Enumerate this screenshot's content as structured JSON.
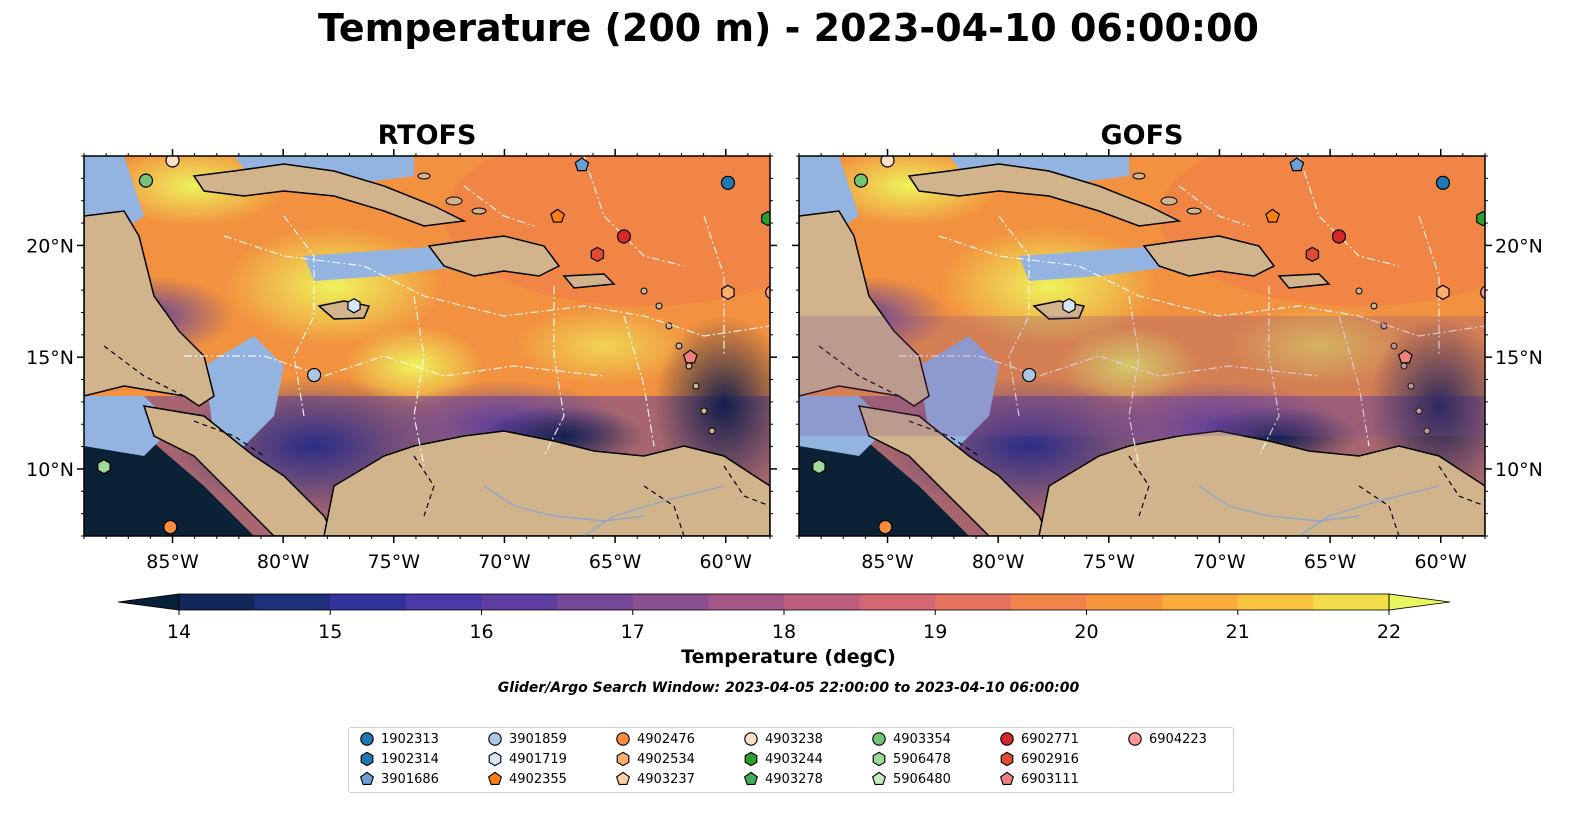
{
  "title": "Temperature (200 m) - 2023-04-10 06:00:00",
  "panels": [
    {
      "title": "RTOFS"
    },
    {
      "title": "GOFS"
    }
  ],
  "axes": {
    "lon_ticks": [
      "85°W",
      "80°W",
      "75°W",
      "70°W",
      "65°W",
      "60°W"
    ],
    "lat_ticks": [
      "20°N",
      "15°N",
      "10°N"
    ]
  },
  "colorbar": {
    "label": "Temperature (degC)",
    "ticks": [
      "14",
      "15",
      "16",
      "17",
      "18",
      "19",
      "20",
      "21",
      "22"
    ],
    "range": [
      14,
      22
    ],
    "colors": [
      "#06213a",
      "#12285b",
      "#1f2f7a",
      "#31339a",
      "#4a3aa6",
      "#5e3f9f",
      "#754796",
      "#8b4e8e",
      "#a35787",
      "#bc5f7f",
      "#d36874",
      "#e6735f",
      "#f2834a",
      "#f8963e",
      "#fbab3c",
      "#f8c341",
      "#f2dc4a",
      "#e8f55e"
    ],
    "extend": "both"
  },
  "search_window": "Glider/Argo Search Window: 2023-04-05 22:00:00 to 2023-04-10 06:00:00",
  "legend": [
    {
      "id": "1902313",
      "marker": "circle",
      "color": "#1f77b4"
    },
    {
      "id": "1902314",
      "marker": "hexagon",
      "color": "#1f77b4"
    },
    {
      "id": "3901686",
      "marker": "pentagon",
      "color": "#6a9fd8"
    },
    {
      "id": "3901859",
      "marker": "circle",
      "color": "#aec7e8"
    },
    {
      "id": "4901719",
      "marker": "hexagon",
      "color": "#d6e6f5"
    },
    {
      "id": "4902355",
      "marker": "pentagon",
      "color": "#ff7f0e"
    },
    {
      "id": "4902476",
      "marker": "circle",
      "color": "#fd8d3c"
    },
    {
      "id": "4902534",
      "marker": "hexagon",
      "color": "#fdae6b"
    },
    {
      "id": "4903237",
      "marker": "pentagon",
      "color": "#fdd0a2"
    },
    {
      "id": "4903238",
      "marker": "circle",
      "color": "#fde0c5"
    },
    {
      "id": "4903244",
      "marker": "hexagon",
      "color": "#2ca02c"
    },
    {
      "id": "4903278",
      "marker": "pentagon",
      "color": "#41ab5d"
    },
    {
      "id": "4903354",
      "marker": "circle",
      "color": "#74c476"
    },
    {
      "id": "5906478",
      "marker": "hexagon",
      "color": "#a1d99b"
    },
    {
      "id": "5906480",
      "marker": "pentagon",
      "color": "#c7e9c0"
    },
    {
      "id": "6902771",
      "marker": "circle",
      "color": "#d62728"
    },
    {
      "id": "6902916",
      "marker": "hexagon",
      "color": "#e34a33"
    },
    {
      "id": "6903111",
      "marker": "pentagon",
      "color": "#f08080"
    },
    {
      "id": "6904223",
      "marker": "circle",
      "color": "#ff9896"
    }
  ],
  "map": {
    "lon_range": [
      -89,
      -58
    ],
    "lat_range": [
      7,
      24
    ],
    "land_color": "#d2b48c",
    "shelf_color": "#93b4e0",
    "observations": [
      {
        "id": "1902313",
        "lon": -59.9,
        "lat": 22.8
      },
      {
        "id": "3901686",
        "lon": -66.5,
        "lat": 23.6
      },
      {
        "id": "3901859",
        "lon": -78.6,
        "lat": 14.2
      },
      {
        "id": "4901719",
        "lon": -76.8,
        "lat": 17.3
      },
      {
        "id": "4902355",
        "lon": -67.6,
        "lat": 21.3
      },
      {
        "id": "4902476",
        "lon": -85.1,
        "lat": 7.4
      },
      {
        "id": "4902534",
        "lon": -59.9,
        "lat": 17.9
      },
      {
        "id": "4903238",
        "lon": -85.0,
        "lat": 23.8
      },
      {
        "id": "4903244",
        "lon": -58.1,
        "lat": 21.2
      },
      {
        "id": "4903354",
        "lon": -86.2,
        "lat": 22.9
      },
      {
        "id": "5906478",
        "lon": -88.1,
        "lat": 10.1
      },
      {
        "id": "6902771",
        "lon": -64.6,
        "lat": 20.4
      },
      {
        "id": "6902916",
        "lon": -65.8,
        "lat": 19.6
      },
      {
        "id": "6903111",
        "lon": -61.6,
        "lat": 15.0
      },
      {
        "id": "6904223",
        "lon": -57.9,
        "lat": 17.9
      }
    ]
  }
}
